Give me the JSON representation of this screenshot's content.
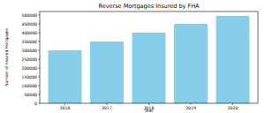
{
  "chart_data": {
    "type": "bar",
    "title": "Reverse Mortgages Insured by FHA",
    "x_label": "Year",
    "y_label": "Number of Insured Mortgages",
    "categories": [
      "2016",
      "2017",
      "2018",
      "2019",
      "2020"
    ],
    "values": [
      300000,
      350000,
      400000,
      450000,
      495000
    ],
    "color": "#87ceeb",
    "ylim": [
      0,
      520000
    ],
    "yticks": [
      0,
      50000,
      100000,
      150000,
      200000,
      250000,
      300000,
      350000,
      400000,
      450000,
      500000
    ],
    "grid": false
  }
}
